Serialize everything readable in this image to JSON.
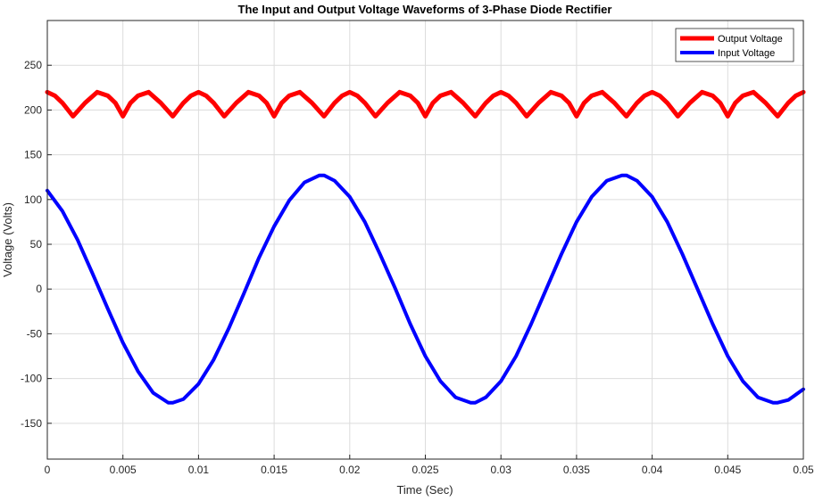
{
  "chart_data": {
    "type": "line",
    "title": "The Input and Output Voltage Waveforms of 3-Phase Diode Rectifier",
    "xlabel": "Time (Sec)",
    "ylabel": "Voltage (Volts)",
    "xlim": [
      0,
      0.05
    ],
    "ylim": [
      -190,
      300
    ],
    "grid": true,
    "legend_position": "top-right",
    "x_ticks": [
      0,
      0.005,
      0.01,
      0.015,
      0.02,
      0.025,
      0.03,
      0.035,
      0.04,
      0.045,
      0.05
    ],
    "x_tick_labels": [
      "0",
      "0.005",
      "0.01",
      "0.015",
      "0.02",
      "0.025",
      "0.03",
      "0.035",
      "0.04",
      "0.045",
      "0.05"
    ],
    "y_ticks": [
      -150,
      -100,
      -50,
      0,
      50,
      100,
      150,
      200,
      250
    ],
    "y_tick_labels": [
      "-150",
      "-100",
      "-50",
      "0",
      "50",
      "100",
      "150",
      "200",
      "250"
    ],
    "series": [
      {
        "name": "Output Voltage",
        "color": "#ff0000",
        "x": [
          0,
          0.0005,
          0.001,
          0.0017,
          0.0025,
          0.0033,
          0.004,
          0.0045,
          0.005,
          0.0055,
          0.006,
          0.0067,
          0.0075,
          0.0083,
          0.009,
          0.0095,
          0.01,
          0.0105,
          0.011,
          0.0117,
          0.0125,
          0.0133,
          0.014,
          0.0145,
          0.015,
          0.0155,
          0.016,
          0.0167,
          0.0175,
          0.0183,
          0.019,
          0.0195,
          0.02,
          0.0205,
          0.021,
          0.0217,
          0.0225,
          0.0233,
          0.024,
          0.0245,
          0.025,
          0.0255,
          0.026,
          0.0267,
          0.0275,
          0.0283,
          0.029,
          0.0295,
          0.03,
          0.0305,
          0.031,
          0.0317,
          0.0325,
          0.0333,
          0.034,
          0.0345,
          0.035,
          0.0355,
          0.036,
          0.0367,
          0.0375,
          0.0383,
          0.039,
          0.0395,
          0.04,
          0.0405,
          0.041,
          0.0417,
          0.0425,
          0.0433,
          0.044,
          0.0445,
          0.045,
          0.0455,
          0.046,
          0.0467,
          0.0475,
          0.0483,
          0.049,
          0.0495,
          0.05
        ],
        "y": [
          220,
          216,
          208,
          193,
          208,
          220,
          216,
          208,
          193,
          208,
          216,
          220,
          208,
          193,
          208,
          216,
          220,
          216,
          208,
          193,
          208,
          220,
          216,
          208,
          193,
          208,
          216,
          220,
          208,
          193,
          208,
          216,
          220,
          216,
          208,
          193,
          208,
          220,
          216,
          208,
          193,
          208,
          216,
          220,
          208,
          193,
          208,
          216,
          220,
          216,
          208,
          193,
          208,
          220,
          216,
          208,
          193,
          208,
          216,
          220,
          208,
          193,
          208,
          216,
          220,
          216,
          208,
          193,
          208,
          220,
          216,
          208,
          193,
          208,
          216,
          220,
          208,
          193,
          208,
          216,
          220
        ]
      },
      {
        "name": "Input Voltage",
        "color": "#0000ff",
        "x": [
          0,
          0.001,
          0.002,
          0.003,
          0.004,
          0.005,
          0.006,
          0.007,
          0.008,
          0.0083,
          0.009,
          0.01,
          0.011,
          0.012,
          0.013,
          0.014,
          0.015,
          0.016,
          0.017,
          0.018,
          0.0183,
          0.019,
          0.02,
          0.021,
          0.022,
          0.023,
          0.024,
          0.025,
          0.026,
          0.027,
          0.028,
          0.0283,
          0.029,
          0.03,
          0.031,
          0.032,
          0.033,
          0.034,
          0.035,
          0.036,
          0.037,
          0.038,
          0.0383,
          0.039,
          0.04,
          0.041,
          0.042,
          0.043,
          0.044,
          0.045,
          0.046,
          0.047,
          0.048,
          0.0483,
          0.049,
          0.05
        ],
        "y": [
          110,
          87,
          55,
          17,
          -22,
          -60,
          -92,
          -116,
          -127,
          -127,
          -123,
          -106,
          -79,
          -44,
          -5,
          35,
          70,
          99,
          119,
          127,
          127,
          121,
          103,
          75,
          39,
          1,
          -39,
          -75,
          -103,
          -121,
          -127,
          -127,
          -121,
          -103,
          -75,
          -39,
          0,
          39,
          75,
          103,
          121,
          127,
          127,
          121,
          103,
          75,
          39,
          0,
          -39,
          -75,
          -103,
          -121,
          -127,
          -127,
          -124,
          -112
        ]
      }
    ]
  }
}
